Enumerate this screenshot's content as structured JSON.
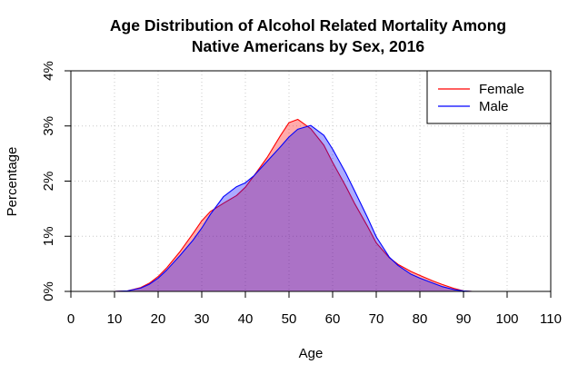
{
  "chart_data": {
    "type": "area",
    "title": "Age Distribution of Alcohol Related Mortality Among Native Americans by Sex, 2016",
    "title_lines": [
      "Age Distribution of Alcohol Related Mortality Among",
      "Native Americans by Sex, 2016"
    ],
    "xlabel": "Age",
    "ylabel": "Percentage",
    "xlim": [
      0,
      110
    ],
    "ylim": [
      0,
      0.04
    ],
    "x_ticks": [
      0,
      10,
      20,
      30,
      40,
      50,
      60,
      70,
      80,
      90,
      100,
      110
    ],
    "x_tick_labels": [
      "0",
      "10",
      "20",
      "30",
      "40",
      "50",
      "60",
      "70",
      "80",
      "90",
      "100",
      "110"
    ],
    "y_ticks": [
      0,
      0.01,
      0.02,
      0.03,
      0.04
    ],
    "y_tick_labels": [
      "0%",
      "1%",
      "2%",
      "3%",
      "4%"
    ],
    "grid": true,
    "legend_position": "top-right",
    "series": [
      {
        "name": "Female",
        "line_color": "#ff0000",
        "fill_color": "#ff0000",
        "x": [
          10,
          13,
          16,
          18,
          20,
          22,
          25,
          28,
          30,
          32,
          35,
          38,
          40,
          42,
          45,
          48,
          50,
          52,
          55,
          58,
          60,
          63,
          65,
          68,
          70,
          73,
          75,
          78,
          80,
          83,
          85,
          88,
          90,
          92
        ],
        "y": [
          0.0,
          0.0001,
          0.0007,
          0.0015,
          0.0027,
          0.0043,
          0.0072,
          0.0105,
          0.0128,
          0.0145,
          0.016,
          0.0174,
          0.0189,
          0.021,
          0.0243,
          0.0282,
          0.0306,
          0.0312,
          0.0295,
          0.0265,
          0.0234,
          0.0191,
          0.016,
          0.0118,
          0.0088,
          0.0061,
          0.0049,
          0.0036,
          0.0029,
          0.0019,
          0.0013,
          0.0005,
          0.0001,
          0.0
        ]
      },
      {
        "name": "Male",
        "line_color": "#0000ff",
        "fill_color": "#0000ff",
        "x": [
          10,
          13,
          16,
          18,
          20,
          22,
          25,
          28,
          30,
          32,
          35,
          38,
          40,
          42,
          45,
          48,
          50,
          52,
          55,
          58,
          60,
          63,
          65,
          68,
          70,
          73,
          75,
          78,
          80,
          83,
          85,
          88,
          90,
          92,
          94
        ],
        "y": [
          0.0,
          0.0001,
          0.0006,
          0.0013,
          0.0024,
          0.0039,
          0.0065,
          0.0093,
          0.0115,
          0.014,
          0.0172,
          0.019,
          0.0197,
          0.021,
          0.0236,
          0.0262,
          0.028,
          0.0294,
          0.0301,
          0.0283,
          0.0258,
          0.0215,
          0.0183,
          0.0134,
          0.0099,
          0.0062,
          0.0047,
          0.0031,
          0.0024,
          0.0015,
          0.0009,
          0.0003,
          0.0001,
          0.0,
          0.0
        ]
      }
    ]
  }
}
